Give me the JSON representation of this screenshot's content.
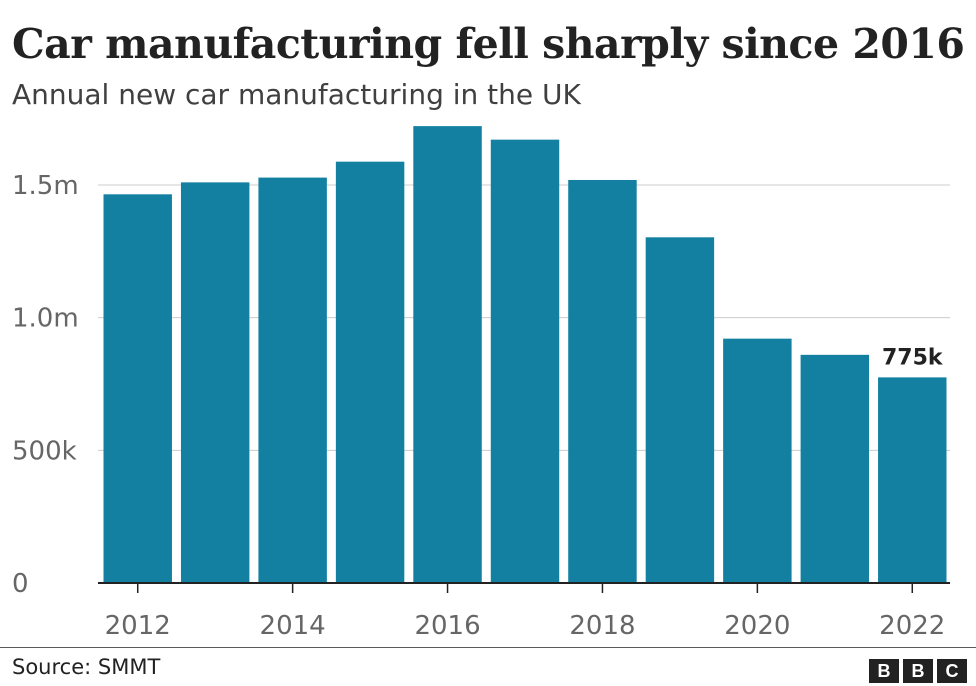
{
  "title": "Car manufacturing fell sharply since 2016",
  "subtitle": "Annual new car manufacturing in the UK",
  "source": "Source: SMMT",
  "logo": [
    "B",
    "B",
    "C"
  ],
  "colors": {
    "bar": "#1380A1",
    "grid": "#cccccc",
    "axis": "#222222",
    "tick_text": "#666666"
  },
  "chart_data": {
    "type": "bar",
    "categories": [
      "2012",
      "2013",
      "2014",
      "2015",
      "2016",
      "2017",
      "2018",
      "2019",
      "2020",
      "2021",
      "2022"
    ],
    "values": [
      1465000,
      1510000,
      1528000,
      1588000,
      1722000,
      1671000,
      1519000,
      1303000,
      921000,
      860000,
      775000
    ],
    "x_tick_labels": [
      "2012",
      "",
      "2014",
      "",
      "2016",
      "",
      "2018",
      "",
      "2020",
      "",
      "2022"
    ],
    "y_ticks": [
      0,
      500000,
      1000000,
      1500000
    ],
    "y_tick_labels": [
      "0",
      "500k",
      "1.0m",
      "1.5m"
    ],
    "ylim": [
      0,
      1730000
    ],
    "grid": true,
    "annotation": {
      "category": "2022",
      "text": "775k"
    }
  }
}
